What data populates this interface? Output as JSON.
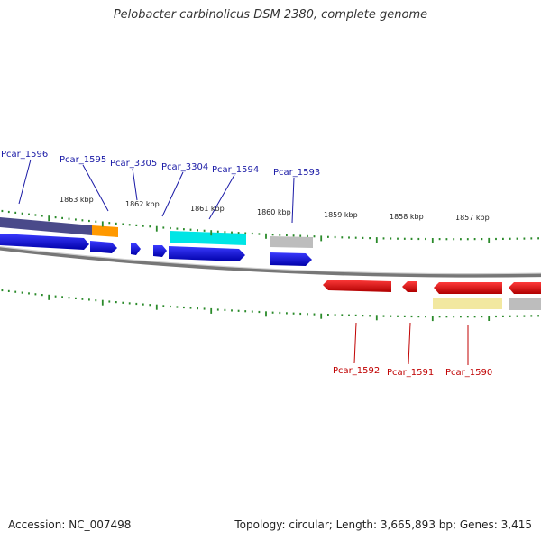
{
  "title": "Pelobacter carbinolicus DSM 2380, complete genome",
  "footer": {
    "accession": "Accession: NC_007498",
    "summary": "Topology: circular; Length: 3,665,893 bp; Genes: 3,415"
  },
  "colors": {
    "forward_gene": "#0000ee",
    "reverse_gene": "#ee0000",
    "tick": "#2a8a2a",
    "backbone": "#8a8a8a",
    "label_forward": "#1a1aa6",
    "label_reverse": "#c00000"
  },
  "scale_ticks": [
    "1863 kbp",
    "1862 kbp",
    "1861 kbp",
    "1860 kbp",
    "1859 kbp",
    "1858 kbp",
    "1857 kbp"
  ],
  "forward_genes": [
    "Pcar_1596",
    "Pcar_1595",
    "Pcar_3305",
    "Pcar_3304",
    "Pcar_1594",
    "Pcar_1593"
  ],
  "reverse_genes": [
    "Pcar_1592",
    "Pcar_1591",
    "Pcar_1590"
  ],
  "feature_colors": {
    "dark_slate": "#4a4a8a",
    "orange": "#ff9900",
    "cyan": "#00e5e5",
    "gray": "#bdbdbd",
    "khaki": "#f2e8a0"
  }
}
